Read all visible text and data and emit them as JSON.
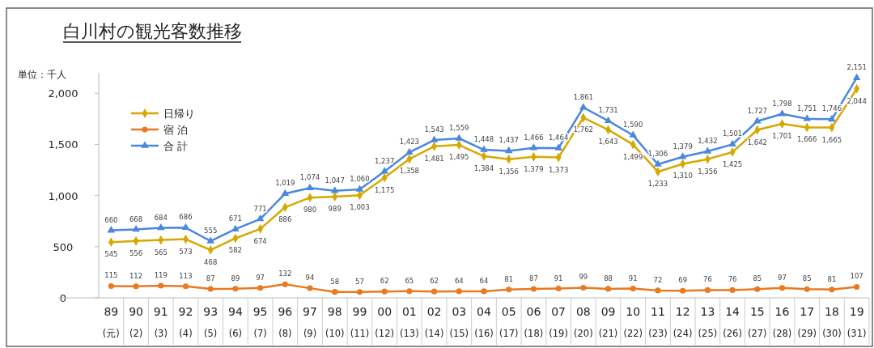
{
  "chart_data": {
    "type": "line",
    "title": "白川村の観光客数推移",
    "ylabel": "単位：千人",
    "categories": [
      "89\n(元)",
      "90\n(2)",
      "91\n(3)",
      "92\n(4)",
      "93\n(5)",
      "94\n(6)",
      "95\n(7)",
      "96\n(8)",
      "97\n(9)",
      "98\n(10)",
      "99\n(11)",
      "00\n(12)",
      "01\n(13)",
      "02\n(14)",
      "03\n(15)",
      "04\n(16)",
      "05\n(17)",
      "06\n(18)",
      "07\n(19)",
      "08\n(20)",
      "09\n(21)",
      "10\n(22)",
      "11\n(23)",
      "12\n(24)",
      "13\n(25)",
      "14\n(26)",
      "15\n(27)",
      "16\n(28)",
      "17\n(29)",
      "18\n(30)",
      "19\n(31)"
    ],
    "series": [
      {
        "name": "日帰り",
        "color": "#d4a900",
        "marker": "diamond",
        "values": [
          545,
          556,
          565,
          573,
          468,
          582,
          674,
          886,
          980,
          989,
          1003,
          1175,
          1358,
          1481,
          1495,
          1384,
          1356,
          1379,
          1373,
          1762,
          1643,
          1499,
          1233,
          1310,
          1356,
          1425,
          1642,
          1701,
          1666,
          1665,
          2044
        ],
        "value_labels": [
          "545",
          "556",
          "565",
          "573",
          "468",
          "582",
          "674",
          "886",
          "980",
          "989",
          "1,003",
          "1,175",
          "1,358",
          "1,481",
          "1,495",
          "1,384",
          "1,356",
          "1,379",
          "1,373",
          "1,762",
          "1,643",
          "1,499",
          "1,233",
          "1,310",
          "1,356",
          "1,425",
          "1,642",
          "1,701",
          "1,666",
          "1,665",
          "2,044"
        ]
      },
      {
        "name": "宿 泊",
        "color": "#e87a22",
        "marker": "circle",
        "values": [
          115,
          112,
          119,
          113,
          87,
          89,
          97,
          132,
          94,
          58,
          57,
          62,
          65,
          62,
          64,
          64,
          81,
          87,
          91,
          99,
          88,
          91,
          72,
          69,
          76,
          76,
          85,
          97,
          85,
          81,
          107
        ],
        "value_labels": [
          "115",
          "112",
          "119",
          "113",
          "87",
          "89",
          "97",
          "132",
          "94",
          "58",
          "57",
          "62",
          "65",
          "62",
          "64",
          "64",
          "81",
          "87",
          "91",
          "99",
          "88",
          "91",
          "72",
          "69",
          "76",
          "76",
          "85",
          "97",
          "85",
          "81",
          "107"
        ]
      },
      {
        "name": "合 計",
        "color": "#4a88dc",
        "marker": "triangle",
        "values": [
          660,
          668,
          684,
          686,
          555,
          671,
          771,
          1019,
          1074,
          1047,
          1060,
          1237,
          1423,
          1543,
          1559,
          1448,
          1437,
          1466,
          1464,
          1861,
          1731,
          1590,
          1306,
          1379,
          1432,
          1501,
          1727,
          1798,
          1751,
          1746,
          2151
        ],
        "value_labels": [
          "660",
          "668",
          "684",
          "686",
          "555",
          "671",
          "771",
          "1,019",
          "1,074",
          "1,047",
          "1,060",
          "1,237",
          "1,423",
          "1,543",
          "1,559",
          "1,448",
          "1,437",
          "1,466",
          "1,464",
          "1,861",
          "1,731",
          "1,590",
          "1,306",
          "1,379",
          "1,432",
          "1,501",
          "1,727",
          "1,798",
          "1,751",
          "1,746",
          "2,151"
        ]
      }
    ],
    "ylim": [
      0,
      2200
    ],
    "yticks": [
      0,
      500,
      {
        "value": 1000,
        "label": "1,000"
      },
      {
        "value": 1500,
        "label": "1,500"
      },
      {
        "value": 2000,
        "label": "2,000"
      }
    ],
    "grid": false,
    "legend": "top left"
  }
}
